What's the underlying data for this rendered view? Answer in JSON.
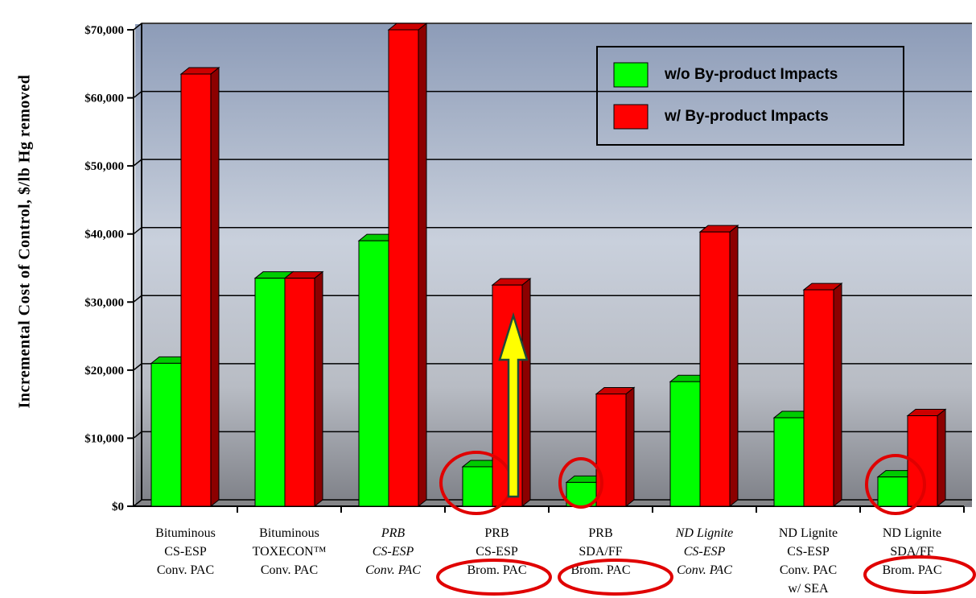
{
  "chart_data": {
    "type": "bar3d",
    "y_label": "Incremental Cost of Control, $/lb Hg removed",
    "categories": [
      "Bituminous\nCS-ESP\nConv. PAC",
      "Bituminous\nTOXECON™\nConv. PAC",
      "PRB\nCS-ESP\nConv. PAC",
      "PRB\nCS-ESP\nBrom. PAC",
      "PRB\nSDA/FF\nBrom. PAC",
      "ND Lignite\nCS-ESP\nConv. PAC",
      "ND Lignite\nCS-ESP\nConv. PAC\nw/ SEA",
      "ND Lignite\nSDA/FF\nBrom. PAC"
    ],
    "category_styles": [
      "normal",
      "normal",
      "italic",
      "normal",
      "normal",
      "italic",
      "normal",
      "normal"
    ],
    "series": [
      {
        "name": "w/o By-product Impacts",
        "color": "#00ff00",
        "values": [
          21000,
          33500,
          39000,
          5800,
          3500,
          18300,
          13000,
          4300
        ]
      },
      {
        "name": "w/ By-product Impacts",
        "color": "#ff0000",
        "values": [
          63500,
          33500,
          70000,
          32500,
          16500,
          40300,
          31800,
          13300
        ]
      }
    ],
    "ylim": [
      0,
      70000
    ],
    "yticks": [
      {
        "value": 0,
        "label": "$0"
      },
      {
        "value": 10000,
        "label": "$10,000"
      },
      {
        "value": 20000,
        "label": "$20,000"
      },
      {
        "value": 30000,
        "label": "$30,000"
      },
      {
        "value": 40000,
        "label": "$40,000"
      },
      {
        "value": 50000,
        "label": "$50,000"
      },
      {
        "value": 60000,
        "label": "$60,000"
      },
      {
        "value": 70000,
        "label": "$70,000"
      }
    ],
    "grid": true,
    "legend": "top-right"
  }
}
